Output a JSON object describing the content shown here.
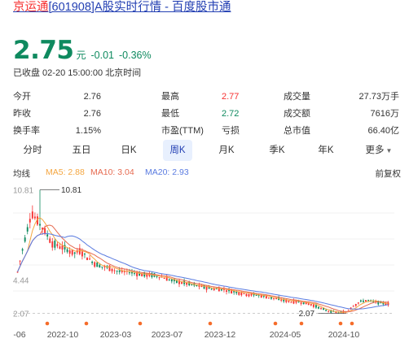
{
  "header": {
    "title_prefix": "京运通",
    "title_rest": "[601908]A股实时行情 - 百度股市通"
  },
  "quote": {
    "price": "2.75",
    "unit": "元",
    "change": "-0.01",
    "change_pct": "-0.36%",
    "status": "已收盘 02-20 15:00:00 北京时间"
  },
  "stats": [
    [
      {
        "label": "今开",
        "value": "2.76",
        "color": "#333333"
      },
      {
        "label": "最高",
        "value": "2.77",
        "color": "#f73131"
      },
      {
        "label": "成交量",
        "value": "27.73万手",
        "color": "#333333"
      }
    ],
    [
      {
        "label": "昨收",
        "value": "2.76",
        "color": "#333333"
      },
      {
        "label": "最低",
        "value": "2.72",
        "color": "#0f8a5f"
      },
      {
        "label": "成交额",
        "value": "7616万",
        "color": "#333333"
      }
    ],
    [
      {
        "label": "换手率",
        "value": "1.15%",
        "color": "#333333"
      },
      {
        "label": "市盈(TTM)",
        "value": "亏损",
        "color": "#333333"
      },
      {
        "label": "总市值",
        "value": "66.40亿",
        "color": "#333333"
      }
    ]
  ],
  "tabs": [
    "分时",
    "五日",
    "日K",
    "周K",
    "月K",
    "季K",
    "年K",
    "更多"
  ],
  "active_tab": "周K",
  "ma": {
    "label": "均线",
    "ma5": "MA5: 2.88",
    "ma10": "MA10: 3.04",
    "ma20": "MA20: 2.93",
    "adjust": "前复权"
  },
  "chart_data": {
    "type": "candlestick",
    "x_tick_labels": [
      "-06",
      "2022-10",
      "2023-03",
      "2023-07",
      "2023-12",
      "2024-05",
      "2024-10"
    ],
    "y_tick_labels": [
      "10.81",
      "4.44",
      "2.07"
    ],
    "y_range": [
      2.07,
      10.81
    ],
    "annotations": {
      "high": "10.81",
      "low": "2.07"
    },
    "series_close_approx": [
      5.0,
      7.2,
      9.2,
      8.5,
      7.8,
      7.0,
      6.8,
      6.6,
      6.3,
      6.5,
      6.0,
      5.6,
      5.4,
      5.3,
      5.1,
      5.0,
      5.0,
      4.9,
      4.8,
      4.8,
      4.7,
      4.6,
      4.4,
      4.3,
      4.2,
      4.1,
      4.0,
      3.9,
      3.8,
      3.8,
      3.7,
      3.6,
      3.5,
      3.4,
      3.4,
      3.3,
      3.2,
      3.1,
      3.0,
      2.9,
      2.9,
      2.8,
      2.7,
      2.5,
      2.3,
      2.2,
      2.1,
      2.2,
      2.6,
      2.9,
      3.0,
      2.9,
      2.8,
      2.75
    ],
    "colors": {
      "up": "#f73131",
      "down": "#0f8a5f",
      "ma5": "#f4a640",
      "ma10": "#e66a50",
      "ma20": "#5a7be0"
    }
  }
}
